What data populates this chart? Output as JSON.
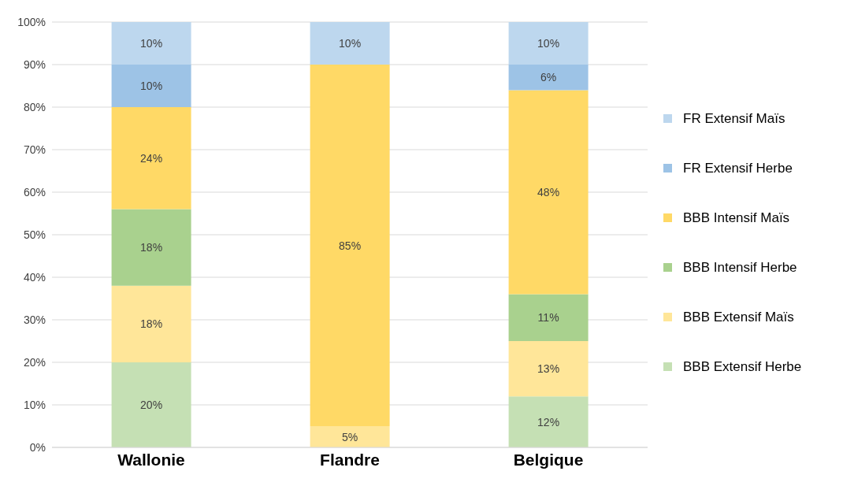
{
  "chart_data": {
    "type": "bar",
    "stacked": true,
    "categories": [
      "Wallonie",
      "Flandre",
      "Belgique"
    ],
    "series": [
      {
        "name": "BBB Extensif Herbe",
        "color": "#c5e0b4",
        "values": [
          20,
          null,
          12
        ],
        "value_labels": [
          "20%",
          null,
          "12%"
        ]
      },
      {
        "name": "BBB Extensif Maïs",
        "color": "#ffe699",
        "values": [
          18,
          5,
          13
        ],
        "value_labels": [
          "18%",
          "5%",
          "13%"
        ]
      },
      {
        "name": "BBB Intensif Herbe",
        "color": "#a9d18e",
        "values": [
          18,
          null,
          11
        ],
        "value_labels": [
          "18%",
          null,
          "11%"
        ]
      },
      {
        "name": "BBB Intensif Maïs",
        "color": "#ffd966",
        "values": [
          24,
          85,
          48
        ],
        "value_labels": [
          "24%",
          "85%",
          "48%"
        ]
      },
      {
        "name": "FR Extensif Herbe",
        "color": "#9dc3e6",
        "values": [
          10,
          null,
          6
        ],
        "value_labels": [
          "10%",
          null,
          "6%"
        ]
      },
      {
        "name": "FR Extensif Maïs",
        "color": "#bdd7ee",
        "values": [
          10,
          10,
          10
        ],
        "value_labels": [
          "10%",
          "10%",
          "10%"
        ]
      }
    ],
    "ylim": [
      0,
      100
    ],
    "yticks": [
      {
        "value": 0,
        "label": "0%"
      },
      {
        "value": 10,
        "label": "10%"
      },
      {
        "value": 20,
        "label": "20%"
      },
      {
        "value": 30,
        "label": "30%"
      },
      {
        "value": 40,
        "label": "40%"
      },
      {
        "value": 50,
        "label": "50%"
      },
      {
        "value": 60,
        "label": "60%"
      },
      {
        "value": 70,
        "label": "70%"
      },
      {
        "value": 80,
        "label": "80%"
      },
      {
        "value": 90,
        "label": "90%"
      },
      {
        "value": 100,
        "label": "100%"
      }
    ],
    "grid": "y",
    "legend": "right"
  }
}
